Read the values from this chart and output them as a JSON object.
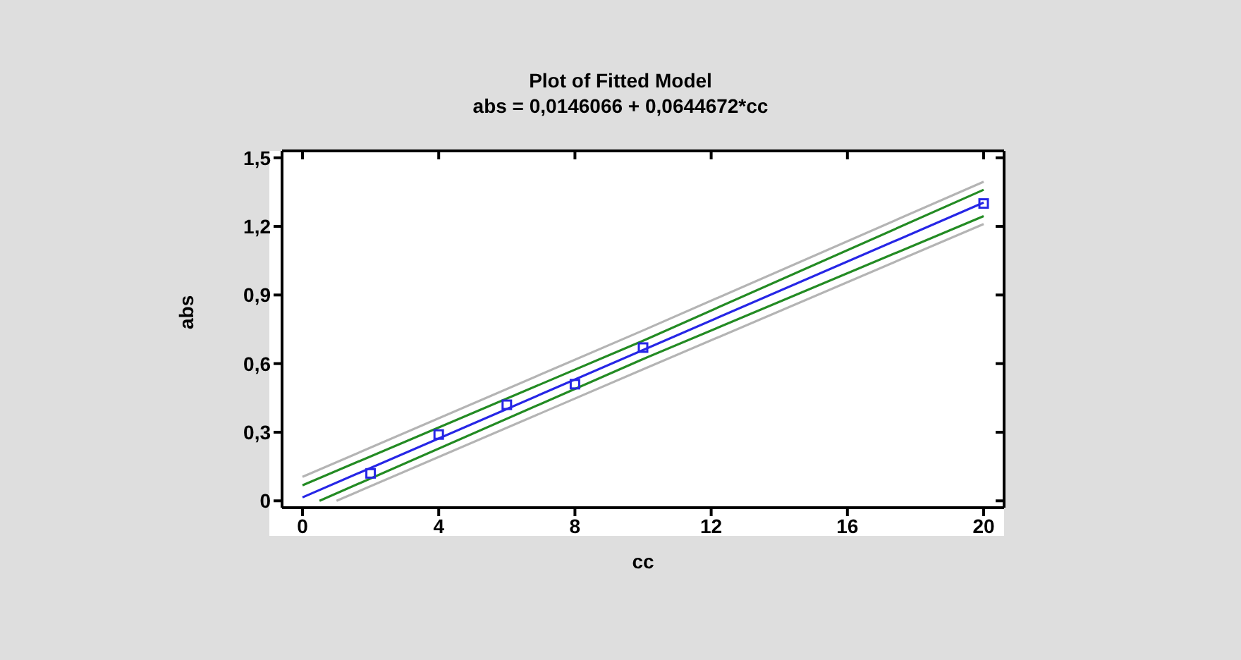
{
  "chart_data": {
    "type": "line",
    "title": "Plot of Fitted Model",
    "subtitle": "abs = 0,0146066 + 0,0644672*cc",
    "xlabel": "cc",
    "ylabel": "abs",
    "xlim": [
      -0.6,
      20.6
    ],
    "ylim": [
      -0.03,
      1.53
    ],
    "xticks": [
      0,
      4,
      8,
      12,
      16,
      20
    ],
    "yticks": [
      {
        "value": 0,
        "label": "0"
      },
      {
        "value": 0.3,
        "label": "0,3"
      },
      {
        "value": 0.6,
        "label": "0,6"
      },
      {
        "value": 0.9,
        "label": "0,9"
      },
      {
        "value": 1.2,
        "label": "1,2"
      },
      {
        "value": 1.5,
        "label": "1,5"
      }
    ],
    "series": [
      {
        "color": "#b4b4b4",
        "marker": "none",
        "x": [
          0,
          10,
          20
        ],
        "values": [
          0.105,
          0.745,
          1.395
        ]
      },
      {
        "color": "#b4b4b4",
        "marker": "none",
        "x": [
          1,
          10,
          20
        ],
        "values": [
          0,
          0.575,
          1.21
        ]
      },
      {
        "color": "#238b23",
        "marker": "none",
        "x": [
          0,
          10,
          20
        ],
        "values": [
          0.068,
          0.7,
          1.36
        ]
      },
      {
        "color": "#238b23",
        "marker": "none",
        "x": [
          0.5,
          10,
          20
        ],
        "values": [
          0,
          0.62,
          1.245
        ]
      },
      {
        "color": "#2626e6",
        "marker": "none",
        "x": [
          0,
          20
        ],
        "values": [
          0.015,
          1.304
        ]
      },
      {
        "type": "scatter",
        "color": "#2626e6",
        "marker": "square",
        "x": [
          2,
          4,
          6,
          8,
          10,
          20
        ],
        "values": [
          0.12,
          0.29,
          0.42,
          0.51,
          0.67,
          1.3
        ]
      }
    ]
  }
}
